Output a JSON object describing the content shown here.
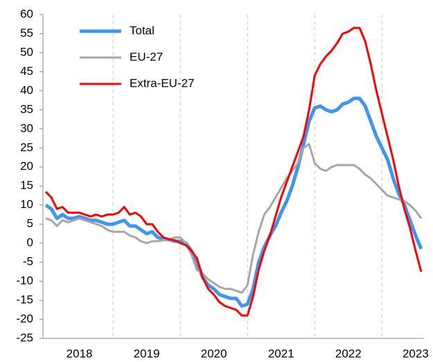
{
  "chart_data": {
    "type": "line",
    "categories": [
      null,
      null,
      null,
      null,
      null,
      null,
      "2018",
      null,
      null,
      null,
      null,
      null,
      null,
      null,
      null,
      null,
      null,
      null,
      "2019",
      null,
      null,
      null,
      null,
      null,
      null,
      null,
      null,
      null,
      null,
      null,
      "2020",
      null,
      null,
      null,
      null,
      null,
      null,
      null,
      null,
      null,
      null,
      null,
      "2021",
      null,
      null,
      null,
      null,
      null,
      null,
      null,
      null,
      null,
      null,
      null,
      "2022",
      null,
      null,
      null,
      null,
      null,
      null,
      null,
      null,
      null,
      null,
      null,
      "2023",
      null
    ],
    "series": [
      {
        "name": "Total",
        "color": "#3d97f0",
        "values": [
          10,
          9,
          6.5,
          7.5,
          6.5,
          6.5,
          7,
          6.5,
          6,
          6,
          5.5,
          5,
          5,
          5.5,
          6,
          4.5,
          4.5,
          3.5,
          2.5,
          3,
          1.5,
          1,
          1,
          0.5,
          0.5,
          0,
          -2,
          -5,
          -9,
          -11,
          -12,
          -13.5,
          -14,
          -14.5,
          -14.5,
          -16.5,
          -16,
          -12,
          -5,
          -1,
          2,
          4.5,
          8,
          11,
          15,
          20,
          26,
          32,
          35.5,
          36,
          35,
          34.5,
          35,
          36.5,
          37,
          38,
          38,
          36,
          32,
          28,
          25,
          22,
          17,
          13,
          10,
          6,
          2,
          -1.5
        ]
      },
      {
        "name": "EU-27",
        "color": "#a6a6a6",
        "values": [
          6.5,
          6,
          4.5,
          6,
          5.5,
          6,
          6.5,
          6,
          5.5,
          5,
          4.5,
          3.5,
          3,
          3,
          3,
          2,
          1.5,
          0.5,
          0,
          0.5,
          0.5,
          0.8,
          1,
          1.5,
          1.5,
          0,
          -3,
          -7,
          -8,
          -9.5,
          -10.5,
          -11.5,
          -12,
          -12,
          -12.5,
          -13,
          -11,
          -3,
          3,
          7.5,
          9.5,
          12,
          14.5,
          17,
          19,
          21,
          25,
          26,
          21,
          19.5,
          19,
          20,
          20.5,
          20.5,
          20.5,
          20.5,
          19.5,
          18,
          17,
          15.5,
          14,
          12.5,
          12,
          11.5,
          11,
          10,
          8.5,
          6.5
        ]
      },
      {
        "name": "Extra-EU-27",
        "color": "#ff0000",
        "values": [
          13.5,
          12,
          9,
          9.5,
          8,
          8,
          8,
          7.5,
          7,
          7.5,
          7,
          7.5,
          7.5,
          8,
          9.5,
          7.5,
          8,
          7,
          5,
          5,
          3,
          1.5,
          1,
          0.8,
          0,
          -0.5,
          -2,
          -4,
          -9,
          -12,
          -13.5,
          -15.5,
          -16.5,
          -17,
          -17.5,
          -19,
          -19,
          -14,
          -7,
          -2,
          2,
          7,
          12,
          16,
          20,
          24,
          28,
          35,
          44,
          47,
          49,
          50.5,
          52.5,
          55,
          55.5,
          56.5,
          56.5,
          53,
          47,
          40,
          34,
          28,
          22,
          15,
          9,
          4,
          -2,
          -7.5
        ]
      }
    ],
    "ylim": [
      -25,
      60
    ],
    "yticks": [
      -25,
      -20,
      -15,
      -10,
      -5,
      0,
      5,
      10,
      15,
      20,
      25,
      30,
      35,
      40,
      45,
      50,
      55,
      60
    ],
    "grid": "x",
    "legend": "top-left"
  }
}
